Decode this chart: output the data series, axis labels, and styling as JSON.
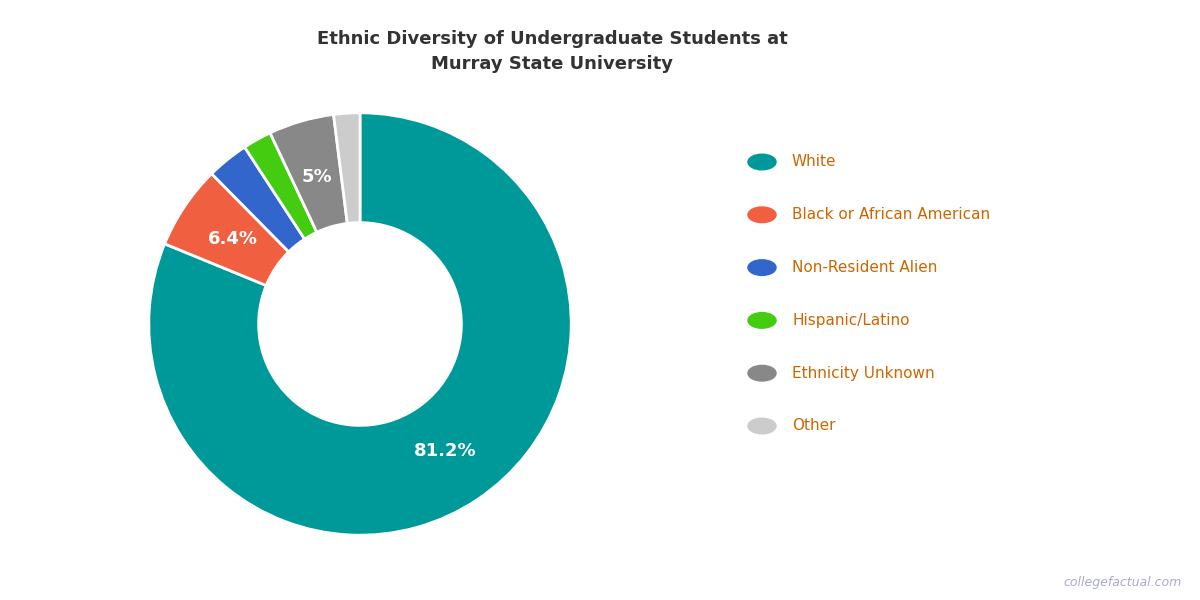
{
  "title": "Ethnic Diversity of Undergraduate Students at\nMurray State University",
  "labels": [
    "White",
    "Black or African American",
    "Non-Resident Alien",
    "Hispanic/Latino",
    "Ethnicity Unknown",
    "Other"
  ],
  "values": [
    81.2,
    6.4,
    3.2,
    2.2,
    5.0,
    2.0
  ],
  "colors": [
    "#009999",
    "#F06040",
    "#3366CC",
    "#44CC11",
    "#888888",
    "#CCCCCC"
  ],
  "pct_labels": [
    "81.2%",
    "6.4%",
    "",
    "",
    "5%",
    ""
  ],
  "pct_label_radii": [
    0.725,
    0.725,
    0,
    0,
    0.725,
    0
  ],
  "watermark": "collegefactual.com",
  "background_color": "#ffffff",
  "title_color": "#333333",
  "legend_text_color": "#CC6600",
  "watermark_color": "#AAAACC"
}
